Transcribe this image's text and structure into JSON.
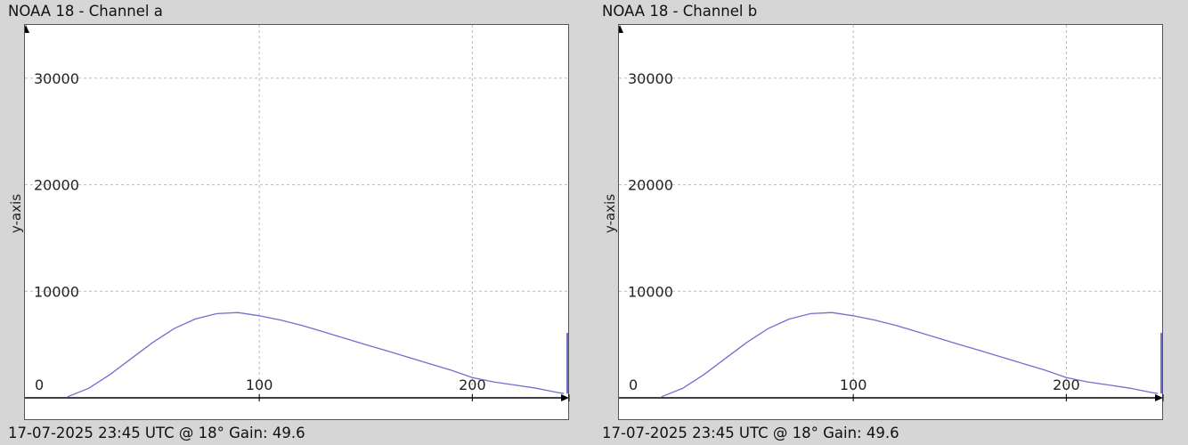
{
  "charts": [
    {
      "title": "NOAA 18 - Channel a",
      "ylabel": "y-axis",
      "footer": "17-07-2025 23:45 UTC @ 18° Gain: 49.6"
    },
    {
      "title": "NOAA 18 - Channel b",
      "ylabel": "y-axis",
      "footer": "17-07-2025 23:45 UTC @ 18° Gain: 49.6"
    }
  ],
  "colors": {
    "line": "#6f6fcf",
    "grid": "#b9b9b9",
    "axis": "#000000",
    "background": "#ffffff",
    "window": "#d6d6d6"
  },
  "chart_data": [
    {
      "type": "line",
      "title": "NOAA 18 - Channel a",
      "xlabel": "",
      "ylabel": "y-axis",
      "xlim": [
        -10,
        245
      ],
      "ylim": [
        -500,
        35000
      ],
      "xticks": [
        0,
        100,
        200
      ],
      "yticks": [
        10000,
        20000,
        30000
      ],
      "grid": true,
      "series": [
        {
          "x": [
            10,
            20,
            30,
            40,
            50,
            60,
            70,
            80,
            90,
            100,
            110,
            120,
            130,
            140,
            150,
            160,
            170,
            180,
            190,
            200,
            210,
            220,
            230,
            235,
            240,
            243
          ],
          "values": [
            100,
            900,
            2200,
            3700,
            5200,
            6500,
            7400,
            7900,
            8000,
            7700,
            7300,
            6800,
            6200,
            5600,
            5000,
            4400,
            3800,
            3200,
            2600,
            1900,
            1500,
            1200,
            900,
            700,
            500,
            400
          ]
        }
      ],
      "end_spike": {
        "x": 245,
        "values": [
          400,
          6100
        ]
      }
    },
    {
      "type": "line",
      "title": "NOAA 18 - Channel b",
      "xlabel": "",
      "ylabel": "y-axis",
      "xlim": [
        -10,
        245
      ],
      "ylim": [
        -500,
        35000
      ],
      "xticks": [
        0,
        100,
        200
      ],
      "yticks": [
        10000,
        20000,
        30000
      ],
      "grid": true,
      "series": [
        {
          "x": [
            10,
            20,
            30,
            40,
            50,
            60,
            70,
            80,
            90,
            100,
            110,
            120,
            130,
            140,
            150,
            160,
            170,
            180,
            190,
            200,
            210,
            220,
            230,
            235,
            240,
            243
          ],
          "values": [
            100,
            900,
            2200,
            3700,
            5200,
            6500,
            7400,
            7900,
            8000,
            7700,
            7300,
            6800,
            6200,
            5600,
            5000,
            4400,
            3800,
            3200,
            2600,
            1900,
            1500,
            1200,
            900,
            700,
            500,
            400
          ]
        }
      ],
      "end_spike": {
        "x": 245,
        "values": [
          400,
          6100
        ]
      }
    }
  ]
}
